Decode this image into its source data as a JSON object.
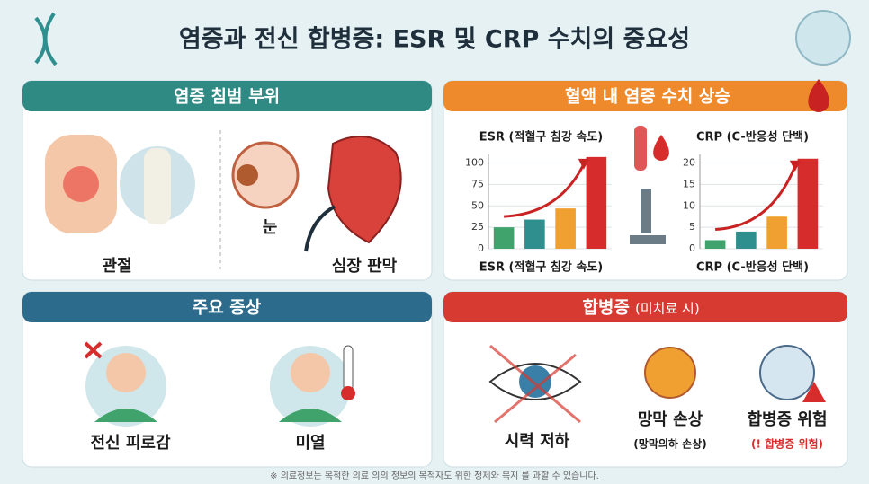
{
  "header": {
    "title": "염증과 전신 합병증: ESR 및 CRP 수치의 중요성"
  },
  "panels": [
    {
      "title": "염증 침범 부위",
      "labels": [
        "관절",
        "눈",
        "심장 판막"
      ]
    },
    {
      "title": "혈액 내 염증 수치 상승",
      "charts": [
        {
          "type": "bar",
          "title": "ESR (적혈구 침강 속도)",
          "x_label": "ESR (적혈구 침강 속도)",
          "values": [
            25,
            34,
            47,
            107
          ],
          "colors": [
            "#3fa36b",
            "#2f8f8f",
            "#f0a030",
            "#d62c2c"
          ],
          "ylim": [
            0,
            110
          ],
          "yticks": [
            0,
            25,
            50,
            75,
            100
          ],
          "grid": true
        },
        {
          "type": "bar",
          "title": "CRP (C-반응성 단백)",
          "x_label": "CRP (C-반응성 단백)",
          "values": [
            2,
            4,
            7.5,
            21
          ],
          "colors": [
            "#3fa36b",
            "#2f8f8f",
            "#f0a030",
            "#d62c2c"
          ],
          "ylim": [
            0,
            22
          ],
          "yticks": [
            0,
            5,
            10,
            15,
            20
          ],
          "grid": true
        }
      ]
    },
    {
      "title": "주요 증상",
      "labels": [
        "전신 피로감",
        "미열"
      ]
    },
    {
      "title": "합병증",
      "subtitle": "(미치료 시)",
      "items": [
        {
          "label": "시력 저하"
        },
        {
          "label": "망막 손상",
          "note": "(망막의하 손상)"
        },
        {
          "label": "합병증 위험",
          "note": "(! 합병증 위험)"
        }
      ]
    }
  ],
  "footer": "※ 의료정보는 목적한 의료 의의 정보의 목적자도 위한 정제와 목지 를 과할 수 있습니다."
}
